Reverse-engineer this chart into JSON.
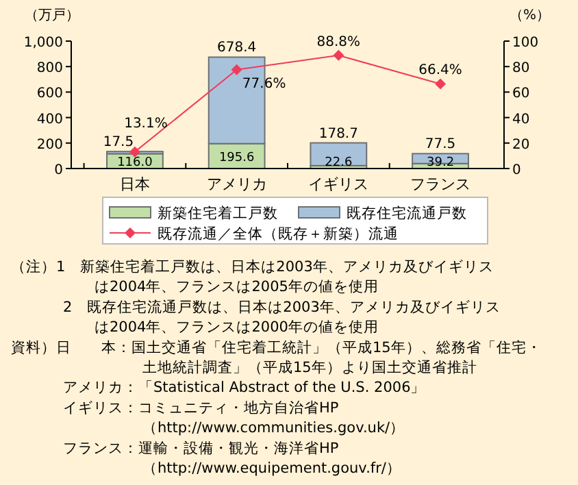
{
  "chart_data": {
    "type": "bar",
    "stacked": true,
    "categories": [
      "日本",
      "アメリカ",
      "イギリス",
      "フランス"
    ],
    "ylabel": "（万戸）",
    "y2label": "（%）",
    "ylim": [
      0,
      1000
    ],
    "yticks": [
      0,
      200,
      400,
      600,
      800,
      {
        "value": 1000,
        "label": "1,000"
      }
    ],
    "y2lim": [
      0,
      100
    ],
    "y2ticks": [
      0,
      20,
      40,
      60,
      80,
      100
    ],
    "series": [
      {
        "name": "新築住宅着工戸数",
        "color": "#c2dfa8",
        "values": [
          116.0,
          195.6,
          22.6,
          39.2
        ],
        "value_labels": [
          "116.0",
          "195.6",
          "22.6",
          "39.2"
        ]
      },
      {
        "name": "既存住宅流通戸数",
        "color": "#a9c2dc",
        "values": [
          17.5,
          678.4,
          178.7,
          77.5
        ],
        "value_labels": [
          "17.5",
          "678.4",
          "178.7",
          "77.5"
        ]
      },
      {
        "name": "既存流通／全体（既存＋新築）流通",
        "type": "line",
        "axis": "y2",
        "color": "#f03c5a",
        "marker": "diamond",
        "values": [
          13.1,
          77.6,
          88.8,
          66.4
        ],
        "value_labels": [
          "13.1%",
          "77.6%",
          "88.8%",
          "66.4%"
        ]
      }
    ],
    "legend": "bottom",
    "grid": false,
    "annotations": [
      "（注）1　新築住宅着工戸数は、日本は2003年、アメリカ及びイギリス",
      "は2004年、フランスは2005年の値を使用",
      "2　既存住宅流通戸数は、日本は2003年、アメリカ及びイギリス",
      "は2004年、フランスは2000年の値を使用",
      "資料）日　　本：国土交通省「住宅着工統計」（平成15年）、総務省「住宅・",
      "土地統計調査」（平成15年）より国土交通省推計",
      "アメリカ：「Statistical Abstract of the U.S. 2006」",
      "イギリス：コミュニティ・地方自治省HP",
      "（http://www.communities.gov.uk/）",
      "フランス：運輸・設備・観光・海洋省HP",
      "（http://www.equipement.gouv.fr/）"
    ]
  }
}
